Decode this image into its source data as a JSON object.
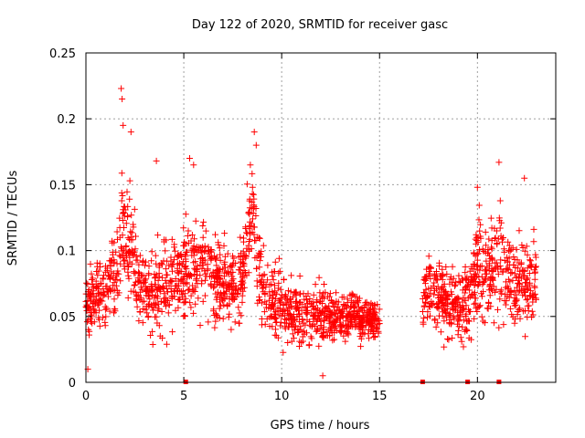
{
  "chart_data": {
    "type": "scatter",
    "title": "Day 122 of 2020, SRMTID for receiver gasc",
    "xlabel": "GPS time / hours",
    "ylabel": "SRMTID / TECUs",
    "xlim": [
      0,
      24
    ],
    "ylim": [
      0,
      0.25
    ],
    "xticks": [
      0,
      5,
      10,
      15,
      20
    ],
    "xtick_labels": [
      "0",
      "5",
      "10",
      "15",
      "20"
    ],
    "yticks": [
      0,
      0.05,
      0.1,
      0.15,
      0.2,
      0.25
    ],
    "ytick_labels": [
      "0",
      "0.05",
      "0.1",
      "0.15",
      "0.2",
      "0.25"
    ],
    "grid": true,
    "marker": "+",
    "color": "#ff0000",
    "series": [
      {
        "name": "SRMTID",
        "profile_x": [
          0.0,
          0.5,
          1.0,
          1.5,
          1.8,
          2.0,
          2.3,
          2.6,
          3.0,
          3.5,
          4.0,
          4.5,
          5.0,
          5.5,
          6.0,
          6.5,
          7.0,
          7.5,
          8.0,
          8.5,
          8.9,
          9.5,
          10.0,
          10.5,
          11.0,
          11.5,
          12.0,
          12.5,
          13.0,
          13.5,
          14.0,
          14.5,
          15.0,
          17.2,
          17.5,
          18.0,
          18.5,
          19.0,
          19.5,
          20.0,
          20.5,
          21.0,
          21.5,
          22.0,
          22.5,
          23.0
        ],
        "profile_y": [
          0.06,
          0.065,
          0.07,
          0.085,
          0.11,
          0.12,
          0.1,
          0.08,
          0.07,
          0.065,
          0.075,
          0.08,
          0.085,
          0.085,
          0.09,
          0.08,
          0.075,
          0.07,
          0.085,
          0.13,
          0.08,
          0.065,
          0.06,
          0.055,
          0.05,
          0.055,
          0.05,
          0.05,
          0.05,
          0.052,
          0.05,
          0.05,
          0.045,
          0.065,
          0.07,
          0.065,
          0.06,
          0.055,
          0.065,
          0.08,
          0.085,
          0.09,
          0.08,
          0.075,
          0.075,
          0.08
        ],
        "profile_spread": [
          0.02,
          0.02,
          0.025,
          0.03,
          0.045,
          0.04,
          0.035,
          0.03,
          0.025,
          0.03,
          0.03,
          0.03,
          0.035,
          0.035,
          0.03,
          0.03,
          0.025,
          0.025,
          0.03,
          0.035,
          0.025,
          0.025,
          0.025,
          0.02,
          0.02,
          0.02,
          0.018,
          0.015,
          0.015,
          0.015,
          0.014,
          0.013,
          0.012,
          0.02,
          0.025,
          0.025,
          0.025,
          0.025,
          0.03,
          0.035,
          0.035,
          0.035,
          0.03,
          0.03,
          0.03,
          0.03
        ],
        "segments": [
          [
            0.0,
            15.0
          ],
          [
            17.2,
            23.0
          ]
        ],
        "samples_per_hour": 100,
        "max_values": [
          {
            "x": 1.8,
            "y": 0.223
          },
          {
            "x": 1.85,
            "y": 0.215
          },
          {
            "x": 1.9,
            "y": 0.195
          },
          {
            "x": 2.3,
            "y": 0.19
          },
          {
            "x": 3.6,
            "y": 0.168
          },
          {
            "x": 5.3,
            "y": 0.17
          },
          {
            "x": 5.5,
            "y": 0.165
          },
          {
            "x": 8.6,
            "y": 0.19
          },
          {
            "x": 8.7,
            "y": 0.18
          },
          {
            "x": 8.4,
            "y": 0.165
          },
          {
            "x": 20.0,
            "y": 0.148
          },
          {
            "x": 21.1,
            "y": 0.167
          },
          {
            "x": 22.4,
            "y": 0.155
          },
          {
            "x": 12.1,
            "y": 0.005
          },
          {
            "x": 0.1,
            "y": 0.01
          }
        ]
      }
    ],
    "gap_markers_x": [
      5.1,
      17.2,
      19.5,
      21.1
    ]
  }
}
